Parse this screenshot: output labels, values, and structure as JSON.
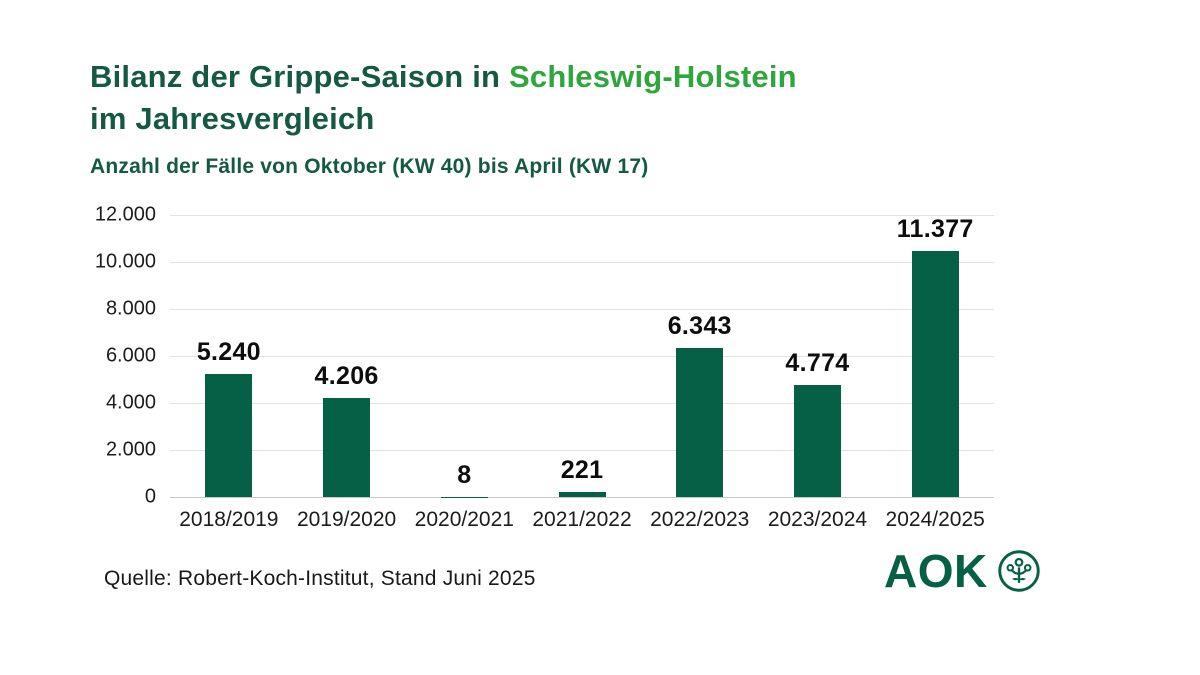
{
  "header": {
    "title_line1_part1": "Bilanz der Grippe-Saison in ",
    "title_line1_part2": "Schleswig-Holstein",
    "title_line2": "im Jahresvergleich",
    "subtitle": "Anzahl der Fälle von Oktober (KW 40) bis April (KW 17)"
  },
  "chart_data": {
    "type": "bar",
    "title": "Bilanz der Grippe-Saison in Schleswig-Holstein im Jahresvergleich",
    "subtitle": "Anzahl der Fälle von Oktober (KW 40) bis April (KW 17)",
    "categories": [
      "2018/2019",
      "2019/2020",
      "2020/2021",
      "2021/2022",
      "2022/2023",
      "2023/2024",
      "2024/2025"
    ],
    "values": [
      5240,
      4206,
      8,
      221,
      6343,
      4774,
      11377
    ],
    "value_labels": [
      "5.240",
      "4.206",
      "8",
      "221",
      "6.343",
      "4.774",
      "11.377"
    ],
    "xlabel": "",
    "ylabel": "",
    "ylim": [
      0,
      12000
    ],
    "yticks": [
      0,
      2000,
      4000,
      6000,
      8000,
      10000,
      12000
    ],
    "ytick_labels": [
      "0",
      "2.000",
      "4.000",
      "6.000",
      "8.000",
      "10.000",
      "12.000"
    ],
    "grid": true,
    "legend": "none",
    "bar_color": "#066045"
  },
  "footer": {
    "source": "Quelle: Robert-Koch-Institut, Stand Juni 2025",
    "logo_text": "AOK",
    "logo_icon": "aok-tree-of-life-icon"
  },
  "colors": {
    "title_dark_green": "#155844",
    "title_accent_green": "#2ea63c",
    "bar_green": "#066045",
    "gridline": "#e2e2e2",
    "axis_baseline": "#c9c9c9",
    "text_dark": "#1c1c1c",
    "background": "#ffffff",
    "logo_green": "#066045"
  }
}
